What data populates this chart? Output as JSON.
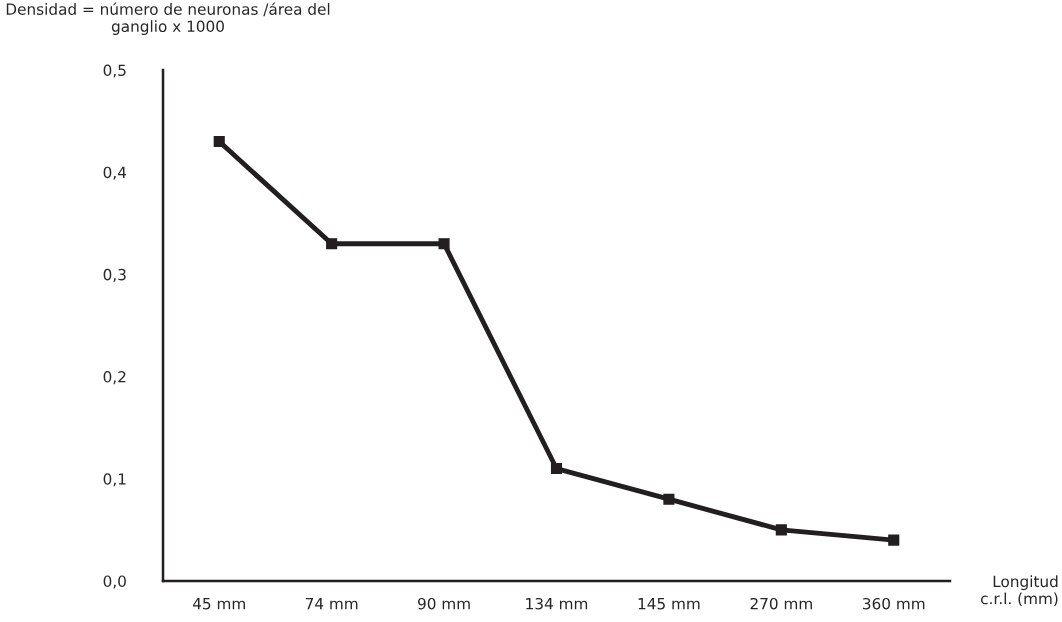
{
  "chart_data": {
    "type": "line",
    "ylabel": "Densidad = número de neuronas /área del\nganglio x 1000",
    "xlabel": "Longitud\nc.r.l. (mm)",
    "categories": [
      "45 mm",
      "74 mm",
      "90 mm",
      "134 mm",
      "145 mm",
      "270 mm",
      "360 mm"
    ],
    "series": [
      {
        "color": "#231f20",
        "values": [
          0.43,
          0.33,
          0.33,
          0.11,
          0.08,
          0.05,
          0.04
        ]
      }
    ],
    "ylim": [
      0,
      0.5
    ],
    "yticks": [
      {
        "value": 0,
        "label": "0,0"
      },
      {
        "value": 0.1,
        "label": "0,1"
      },
      {
        "value": 0.2,
        "label": "0,2"
      },
      {
        "value": 0.3,
        "label": "0,3"
      },
      {
        "value": 0.4,
        "label": "0,4"
      },
      {
        "value": 0.5,
        "label": "0,5"
      }
    ],
    "marker": "square",
    "line_style": "solid",
    "grid": false,
    "legend": false
  }
}
